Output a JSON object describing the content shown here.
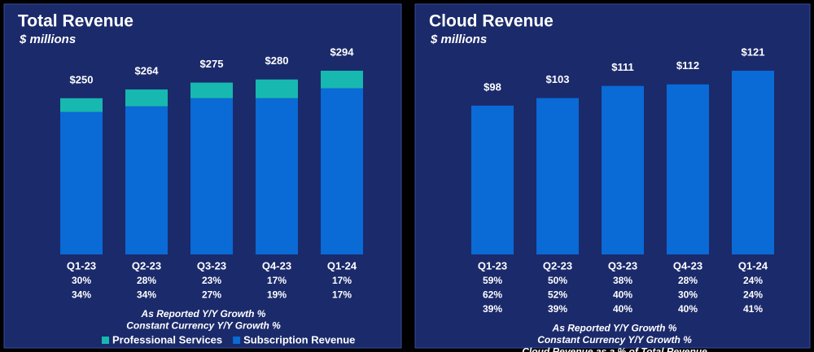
{
  "chart_data": [
    {
      "type": "stacked-bar",
      "title": "Total Revenue",
      "subtitle": "$ millions",
      "categories": [
        "Q1-23",
        "Q2-23",
        "Q3-23",
        "Q4-23",
        "Q1-24"
      ],
      "series": [
        {
          "name": "Professional Services",
          "color": "#17b8b0",
          "values": [
            22,
            27,
            25,
            30,
            28
          ]
        },
        {
          "name": "Subscription Revenue",
          "color": "#0a6ad6",
          "values": [
            228,
            237,
            250,
            250,
            266
          ]
        }
      ],
      "totals": [
        250,
        264,
        275,
        280,
        294
      ],
      "total_labels": [
        "$250",
        "$264",
        "$275",
        "$280",
        "$294"
      ],
      "rows": [
        {
          "label": "As Reported Y/Y Growth %",
          "color": "#ffffff",
          "values": [
            "30%",
            "28%",
            "23%",
            "17%",
            "17%"
          ]
        },
        {
          "label": "Constant Currency Y/Y Growth %",
          "color": "#f08a7a",
          "values": [
            "34%",
            "34%",
            "27%",
            "19%",
            "17%"
          ]
        }
      ]
    },
    {
      "type": "bar",
      "title": "Cloud Revenue",
      "subtitle": "$ millions",
      "categories": [
        "Q1-23",
        "Q2-23",
        "Q3-23",
        "Q4-23",
        "Q1-24"
      ],
      "values": [
        98,
        103,
        111,
        112,
        121
      ],
      "value_labels": [
        "$98",
        "$103",
        "$111",
        "$112",
        "$121"
      ],
      "color": "#0a6ad6",
      "rows": [
        {
          "label": "As Reported Y/Y Growth %",
          "color": "#ffffff",
          "values": [
            "59%",
            "50%",
            "38%",
            "28%",
            "24%"
          ]
        },
        {
          "label": "Constant Currency Y/Y Growth %",
          "color": "#f08a7a",
          "values": [
            "62%",
            "52%",
            "40%",
            "30%",
            "24%"
          ]
        },
        {
          "label": "Cloud Revenue as a % of Total Revenue",
          "color": "#2ec4b6",
          "values": [
            "39%",
            "39%",
            "40%",
            "40%",
            "41%"
          ]
        }
      ]
    }
  ]
}
